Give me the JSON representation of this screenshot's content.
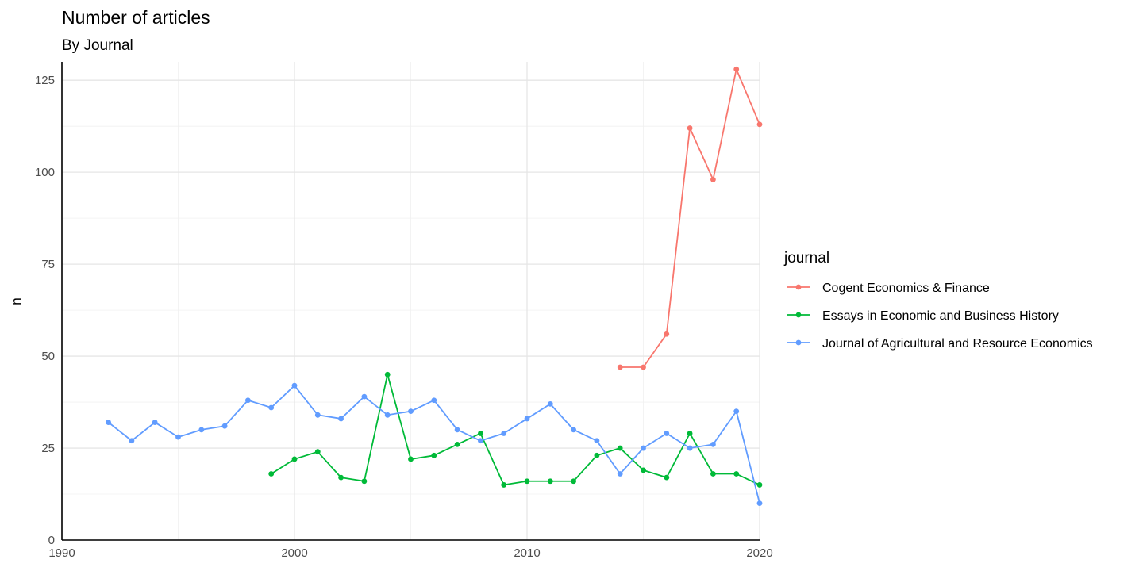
{
  "chart_data": {
    "type": "line",
    "title": "Number of articles",
    "subtitle": "By Journal",
    "xlabel": "",
    "ylabel": "n",
    "xlim": [
      1990,
      2020
    ],
    "ylim": [
      0,
      130
    ],
    "x_ticks": [
      1990,
      2000,
      2010,
      2020
    ],
    "y_ticks": [
      0,
      25,
      50,
      75,
      100,
      125
    ],
    "grid": true,
    "legend": {
      "title": "journal",
      "position": "right"
    },
    "series": [
      {
        "name": "Cogent Economics & Finance",
        "color": "#F8766D",
        "x": [
          2014,
          2015,
          2016,
          2017,
          2018,
          2019,
          2020
        ],
        "y": [
          47,
          47,
          56,
          112,
          98,
          128,
          113
        ]
      },
      {
        "name": "Essays in Economic and Business History",
        "color": "#00BA38",
        "x": [
          1999,
          2000,
          2001,
          2002,
          2003,
          2004,
          2005,
          2006,
          2007,
          2008,
          2009,
          2010,
          2011,
          2012,
          2013,
          2014,
          2015,
          2016,
          2017,
          2018,
          2019,
          2020
        ],
        "y": [
          18,
          22,
          24,
          17,
          16,
          45,
          22,
          23,
          26,
          29,
          15,
          16,
          16,
          16,
          23,
          25,
          19,
          17,
          29,
          18,
          18,
          15
        ]
      },
      {
        "name": "Journal of Agricultural and Resource Economics",
        "color": "#619CFF",
        "x": [
          1992,
          1993,
          1994,
          1995,
          1996,
          1997,
          1998,
          1999,
          2000,
          2001,
          2002,
          2003,
          2004,
          2005,
          2006,
          2007,
          2008,
          2009,
          2010,
          2011,
          2012,
          2013,
          2014,
          2015,
          2016,
          2017,
          2018,
          2019,
          2020
        ],
        "y": [
          32,
          27,
          32,
          28,
          30,
          31,
          38,
          36,
          42,
          34,
          33,
          39,
          34,
          35,
          38,
          30,
          27,
          29,
          33,
          37,
          30,
          27,
          18,
          25,
          29,
          25,
          26,
          35,
          10
        ]
      }
    ]
  }
}
